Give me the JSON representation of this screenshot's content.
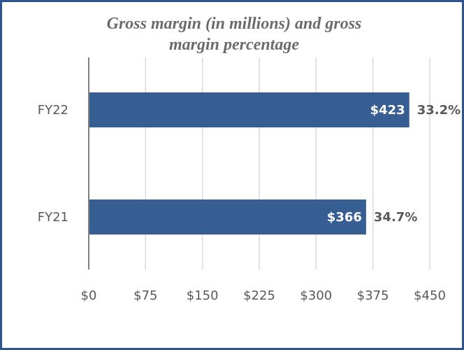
{
  "chart_data": {
    "type": "bar",
    "orientation": "horizontal",
    "title_lines": [
      "Gross margin (in millions) and gross",
      "margin percentage"
    ],
    "categories": [
      "FY22",
      "FY21"
    ],
    "values": [
      423,
      366
    ],
    "value_labels": [
      "$423",
      "$366"
    ],
    "percent_labels": [
      "33.2%",
      "34.7%"
    ],
    "xlim": [
      0,
      450
    ],
    "xticks": [
      0,
      75,
      150,
      225,
      300,
      375,
      450
    ],
    "xtick_labels": [
      "$0",
      "$75",
      "$150",
      "$225",
      "$300",
      "$375",
      "$450"
    ],
    "grid": "vertical",
    "legend": "none",
    "bar_color": "#375e93",
    "grid_color": "#d9d9d9",
    "axis_color": "#808080",
    "border_color": "#2f5590"
  }
}
